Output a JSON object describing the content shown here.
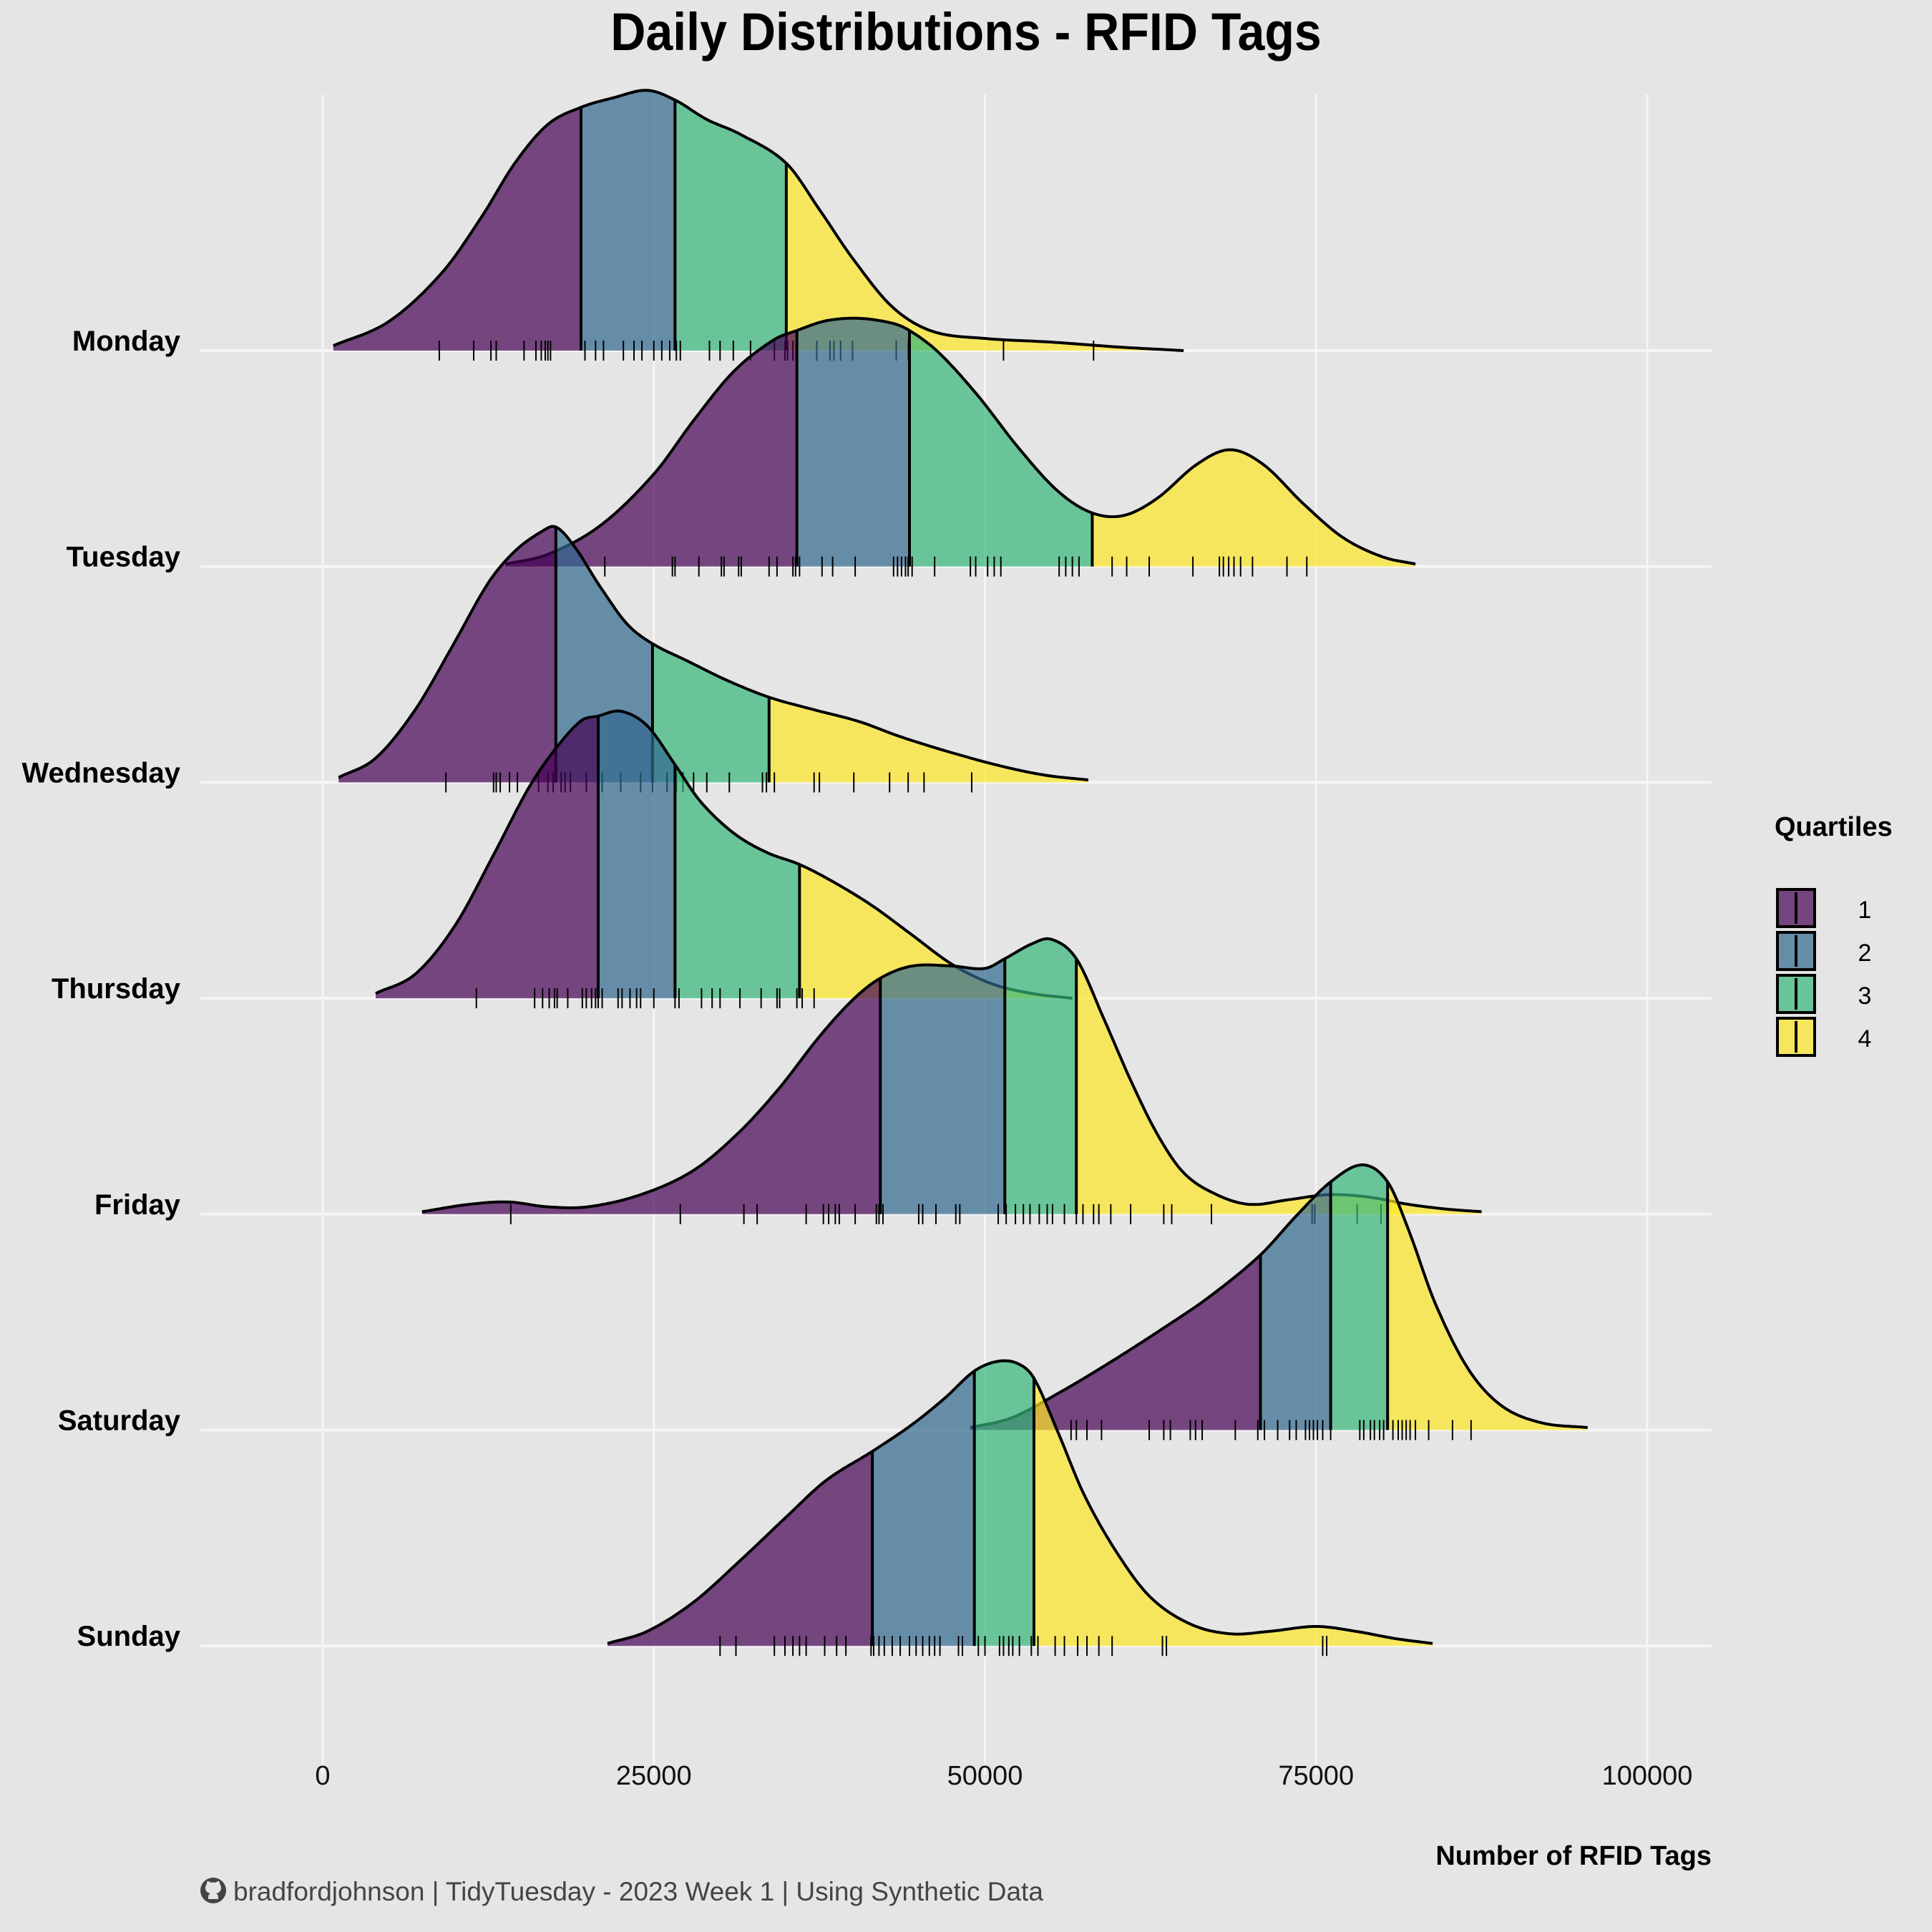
{
  "chart_data": {
    "type": "ridgeline",
    "title": "Daily Distributions - RFID Tags",
    "xlabel": "Number of RFID Tags",
    "ylabel": "",
    "xlim": [
      -18000,
      105000
    ],
    "x_ticks": [
      0,
      25000,
      50000,
      75000,
      100000
    ],
    "x_tick_labels": [
      "0",
      "25000",
      "50000",
      "75000",
      "100000"
    ],
    "grid": true,
    "legend": {
      "title": "Quartiles",
      "placement": "right",
      "entries": [
        {
          "label": "1",
          "color": "#440154"
        },
        {
          "label": "2",
          "color": "#31688E"
        },
        {
          "label": "3",
          "color": "#35B779"
        },
        {
          "label": "4",
          "color": "#FDE725"
        }
      ]
    },
    "fill_alpha": 0.7,
    "caption": "bradfordjohnson | TidyTuesday - 2023 Week 1 | Using Synthetic Data",
    "series": [
      {
        "name": "Monday",
        "quartiles": [
          19500,
          26600,
          35000
        ],
        "density": [
          [
            800,
            0.02
          ],
          [
            5000,
            0.12
          ],
          [
            9000,
            0.32
          ],
          [
            12000,
            0.55
          ],
          [
            14500,
            0.77
          ],
          [
            17000,
            0.93
          ],
          [
            19500,
            1.0
          ],
          [
            22000,
            1.04
          ],
          [
            24500,
            1.07
          ],
          [
            26600,
            1.03
          ],
          [
            29000,
            0.95
          ],
          [
            31500,
            0.89
          ],
          [
            35000,
            0.77
          ],
          [
            37500,
            0.58
          ],
          [
            40000,
            0.38
          ],
          [
            43000,
            0.18
          ],
          [
            46000,
            0.08
          ],
          [
            50000,
            0.05
          ],
          [
            55000,
            0.035
          ],
          [
            60000,
            0.015
          ],
          [
            65000,
            0.0
          ]
        ],
        "rug": [
          8800,
          11400,
          12700,
          13100,
          15200,
          16100,
          16500,
          16800,
          17000,
          17200,
          19800,
          20600,
          21200,
          22700,
          23500,
          24100,
          25000,
          25600,
          26200,
          26700,
          27000,
          29200,
          30000,
          31000,
          32300,
          34100,
          34900,
          35100,
          35500,
          37300,
          38300,
          38600,
          39100,
          40000,
          43300,
          44200,
          51400,
          58200
        ]
      },
      {
        "name": "Tuesday",
        "quartiles": [
          35800,
          44300,
          58100
        ],
        "density": [
          [
            13800,
            0.01
          ],
          [
            17000,
            0.05
          ],
          [
            21000,
            0.17
          ],
          [
            25000,
            0.38
          ],
          [
            28000,
            0.6
          ],
          [
            31000,
            0.8
          ],
          [
            34000,
            0.93
          ],
          [
            35800,
            0.97
          ],
          [
            38000,
            1.01
          ],
          [
            40500,
            1.02
          ],
          [
            43000,
            1.0
          ],
          [
            44300,
            0.97
          ],
          [
            46500,
            0.88
          ],
          [
            49500,
            0.7
          ],
          [
            52500,
            0.49
          ],
          [
            55500,
            0.31
          ],
          [
            58100,
            0.22
          ],
          [
            60500,
            0.21
          ],
          [
            63000,
            0.28
          ],
          [
            66000,
            0.42
          ],
          [
            68500,
            0.48
          ],
          [
            71000,
            0.42
          ],
          [
            74000,
            0.26
          ],
          [
            77000,
            0.12
          ],
          [
            80000,
            0.04
          ],
          [
            82500,
            0.01
          ]
        ],
        "rug": [
          21300,
          26400,
          26600,
          28400,
          30100,
          30300,
          31400,
          31600,
          33700,
          34300,
          35500,
          35700,
          36000,
          37700,
          38500,
          40200,
          43100,
          43400,
          43700,
          44000,
          44200,
          44500,
          46200,
          48900,
          49300,
          50200,
          50700,
          51200,
          55600,
          56100,
          56600,
          57100,
          59600,
          60700,
          62400,
          65700,
          67700,
          68000,
          68400,
          68800,
          69300,
          70200,
          72800,
          74300
        ]
      },
      {
        "name": "Wednesday",
        "quartiles": [
          17600,
          24900,
          33700
        ],
        "density": [
          [
            1200,
            0.02
          ],
          [
            4000,
            0.1
          ],
          [
            7000,
            0.3
          ],
          [
            10000,
            0.58
          ],
          [
            12500,
            0.82
          ],
          [
            14500,
            0.95
          ],
          [
            16500,
            1.03
          ],
          [
            17600,
            1.05
          ],
          [
            19000,
            0.97
          ],
          [
            21000,
            0.8
          ],
          [
            23000,
            0.65
          ],
          [
            24900,
            0.57
          ],
          [
            27500,
            0.5
          ],
          [
            30500,
            0.42
          ],
          [
            33700,
            0.35
          ],
          [
            37000,
            0.3
          ],
          [
            40500,
            0.25
          ],
          [
            43500,
            0.19
          ],
          [
            47000,
            0.13
          ],
          [
            51000,
            0.07
          ],
          [
            54500,
            0.03
          ],
          [
            57800,
            0.01
          ]
        ],
        "rug": [
          9300,
          12900,
          13100,
          13400,
          14100,
          14700,
          16300,
          17000,
          17400,
          18000,
          18300,
          18700,
          19900,
          20800,
          21100,
          22500,
          24000,
          24900,
          26000,
          26700,
          27200,
          28000,
          29000,
          30700,
          33200,
          33500,
          34100,
          37100,
          37500,
          40100,
          42800,
          44200,
          45400,
          49000
        ]
      },
      {
        "name": "Thursday",
        "quartiles": [
          20800,
          26600,
          36000
        ],
        "density": [
          [
            4000,
            0.02
          ],
          [
            7000,
            0.1
          ],
          [
            10000,
            0.3
          ],
          [
            13000,
            0.6
          ],
          [
            15500,
            0.86
          ],
          [
            17500,
            1.02
          ],
          [
            19500,
            1.14
          ],
          [
            20800,
            1.16
          ],
          [
            22500,
            1.18
          ],
          [
            24500,
            1.12
          ],
          [
            26600,
            0.96
          ],
          [
            28500,
            0.81
          ],
          [
            31000,
            0.68
          ],
          [
            33500,
            0.6
          ],
          [
            36000,
            0.55
          ],
          [
            38500,
            0.48
          ],
          [
            41500,
            0.38
          ],
          [
            44500,
            0.26
          ],
          [
            47500,
            0.14
          ],
          [
            50500,
            0.06
          ],
          [
            53500,
            0.02
          ],
          [
            56600,
            0.0
          ]
        ],
        "rug": [
          11600,
          16000,
          16600,
          17100,
          17500,
          17700,
          18500,
          19600,
          19900,
          20300,
          20600,
          20800,
          21100,
          22300,
          22600,
          23200,
          23700,
          24000,
          25000,
          26600,
          26900,
          28600,
          29400,
          30000,
          31500,
          33100,
          34300,
          34500,
          35800,
          36200,
          37100
        ]
      },
      {
        "name": "Friday",
        "quartiles": [
          42100,
          51500,
          56900
        ],
        "density": [
          [
            7500,
            0.01
          ],
          [
            11000,
            0.04
          ],
          [
            14000,
            0.05
          ],
          [
            17000,
            0.03
          ],
          [
            20000,
            0.03
          ],
          [
            24000,
            0.08
          ],
          [
            28000,
            0.18
          ],
          [
            31500,
            0.34
          ],
          [
            34500,
            0.52
          ],
          [
            37500,
            0.73
          ],
          [
            40000,
            0.88
          ],
          [
            42100,
            0.97
          ],
          [
            44500,
            1.02
          ],
          [
            47500,
            1.02
          ],
          [
            50000,
            1.01
          ],
          [
            51500,
            1.05
          ],
          [
            53500,
            1.11
          ],
          [
            55000,
            1.13
          ],
          [
            56900,
            1.05
          ],
          [
            59000,
            0.8
          ],
          [
            61000,
            0.55
          ],
          [
            63000,
            0.33
          ],
          [
            65000,
            0.17
          ],
          [
            67500,
            0.08
          ],
          [
            70000,
            0.04
          ],
          [
            73000,
            0.06
          ],
          [
            76000,
            0.08
          ],
          [
            79000,
            0.07
          ],
          [
            82000,
            0.04
          ],
          [
            85000,
            0.02
          ],
          [
            87500,
            0.01
          ]
        ],
        "rug": [
          14200,
          27000,
          31800,
          32800,
          36500,
          37800,
          38200,
          38700,
          39000,
          40200,
          41800,
          42000,
          42300,
          45000,
          45300,
          46300,
          47800,
          48100,
          51000,
          51600,
          52300,
          52900,
          53400,
          54100,
          54700,
          55100,
          56000,
          56900,
          57400,
          58200,
          58600,
          59500,
          61000,
          63500,
          64100,
          67100,
          74700,
          74900,
          78100,
          79900
        ]
      },
      {
        "name": "Saturday",
        "quartiles": [
          70800,
          76100,
          80400
        ],
        "density": [
          [
            48900,
            0.01
          ],
          [
            52000,
            0.05
          ],
          [
            55500,
            0.15
          ],
          [
            59500,
            0.28
          ],
          [
            63500,
            0.42
          ],
          [
            67000,
            0.55
          ],
          [
            70800,
            0.72
          ],
          [
            73500,
            0.88
          ],
          [
            76100,
            1.02
          ],
          [
            78500,
            1.09
          ],
          [
            80400,
            1.02
          ],
          [
            82000,
            0.82
          ],
          [
            84000,
            0.52
          ],
          [
            86500,
            0.25
          ],
          [
            89000,
            0.1
          ],
          [
            92000,
            0.03
          ],
          [
            95500,
            0.01
          ]
        ],
        "rug": [
          56500,
          56900,
          57700,
          58800,
          62400,
          63500,
          64000,
          65500,
          65900,
          66400,
          68900,
          70600,
          71100,
          72100,
          73000,
          73500,
          74200,
          74500,
          74800,
          75100,
          75500,
          76100,
          78300,
          78600,
          79100,
          79400,
          79800,
          80100,
          80800,
          81200,
          81500,
          81800,
          82100,
          82500,
          83500,
          85300,
          86700
        ]
      },
      {
        "name": "Sunday",
        "quartiles": [
          41500,
          49200,
          53700
        ],
        "density": [
          [
            21500,
            0.01
          ],
          [
            24500,
            0.06
          ],
          [
            28000,
            0.18
          ],
          [
            31500,
            0.35
          ],
          [
            35000,
            0.53
          ],
          [
            38000,
            0.68
          ],
          [
            41500,
            0.8
          ],
          [
            44500,
            0.91
          ],
          [
            47000,
            1.02
          ],
          [
            49200,
            1.13
          ],
          [
            51000,
            1.17
          ],
          [
            52500,
            1.16
          ],
          [
            53700,
            1.1
          ],
          [
            55500,
            0.88
          ],
          [
            57500,
            0.62
          ],
          [
            60000,
            0.38
          ],
          [
            62500,
            0.2
          ],
          [
            65500,
            0.09
          ],
          [
            68500,
            0.05
          ],
          [
            71500,
            0.06
          ],
          [
            75000,
            0.08
          ],
          [
            78000,
            0.06
          ],
          [
            81000,
            0.03
          ],
          [
            83800,
            0.01
          ]
        ],
        "rug": [
          30000,
          31200,
          34100,
          34900,
          35500,
          36000,
          36500,
          37900,
          38800,
          39500,
          41400,
          41600,
          42000,
          42400,
          43000,
          43600,
          44300,
          44800,
          45300,
          45800,
          46200,
          46600,
          48000,
          48300,
          49500,
          50000,
          51100,
          51400,
          51800,
          52100,
          52600,
          53500,
          54000,
          55300,
          56000,
          57000,
          57700,
          58600,
          59600,
          63400,
          63700,
          75500,
          75800
        ]
      }
    ]
  }
}
